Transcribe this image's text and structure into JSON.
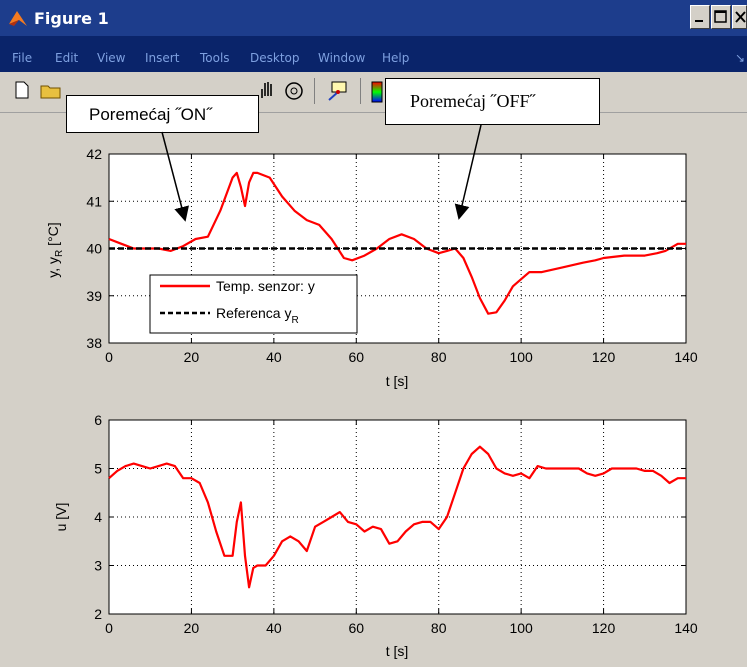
{
  "window": {
    "title": "Figure 1"
  },
  "menu": [
    "File",
    "Edit",
    "View",
    "Insert",
    "Tools",
    "Desktop",
    "Window",
    "Help"
  ],
  "toolbar_icons": [
    "new-file-icon",
    "open-folder-icon",
    "pan-hand-icon",
    "rotate-3d-icon",
    "data-cursor-icon",
    "colorbar-icon"
  ],
  "annotations": {
    "on": "Poremećaj ˝ON˝",
    "off": "Poremećaj ˝OFF˝"
  },
  "colors": {
    "sensor": "#ff0000",
    "reference": "#000000",
    "titlebar": "#1d3d8c",
    "menubar": "#0a246a"
  },
  "chart_data": [
    {
      "type": "line",
      "xlabel": "t [s]",
      "ylabel": "y, y",
      "ylabel_sub": "R",
      "ylabel_unit": " [°C]",
      "xlim": [
        0,
        140
      ],
      "ylim": [
        38,
        42
      ],
      "xticks": [
        0,
        20,
        40,
        60,
        80,
        100,
        120,
        140
      ],
      "yticks": [
        38,
        39,
        40,
        41,
        42
      ],
      "grid": true,
      "legend_position": "bottom-left",
      "series": [
        {
          "name": "Temp. senzor: y",
          "color": "#ff0000",
          "style": "solid",
          "x": [
            0,
            3,
            6,
            9,
            12,
            15,
            18,
            21,
            24,
            27,
            30,
            31,
            32,
            33,
            34,
            35,
            36,
            39,
            42,
            45,
            48,
            51,
            54,
            57,
            59,
            62,
            65,
            68,
            71,
            74,
            77,
            80,
            82,
            84,
            86,
            88,
            90,
            92,
            94,
            96,
            98,
            100,
            102,
            105,
            110,
            115,
            118,
            120,
            125,
            130,
            133,
            135,
            138,
            140
          ],
          "y": [
            40.2,
            40.1,
            40.0,
            40.0,
            40.0,
            39.95,
            40.05,
            40.2,
            40.25,
            40.8,
            41.5,
            41.6,
            41.3,
            40.9,
            41.4,
            41.6,
            41.6,
            41.5,
            41.1,
            40.8,
            40.6,
            40.5,
            40.2,
            39.8,
            39.75,
            39.85,
            40.0,
            40.2,
            40.3,
            40.2,
            40.0,
            39.9,
            39.95,
            40.0,
            39.8,
            39.4,
            38.95,
            38.62,
            38.65,
            38.9,
            39.2,
            39.35,
            39.5,
            39.5,
            39.6,
            39.7,
            39.75,
            39.8,
            39.85,
            39.85,
            39.9,
            39.95,
            40.1,
            40.1
          ]
        },
        {
          "name": "Referenca y",
          "name_sub": "R",
          "color": "#000000",
          "style": "dashed",
          "x": [
            0,
            140
          ],
          "y": [
            40,
            40
          ]
        }
      ]
    },
    {
      "type": "line",
      "xlabel": "t [s]",
      "ylabel": "u [V]",
      "xlim": [
        0,
        140
      ],
      "ylim": [
        2,
        6
      ],
      "xticks": [
        0,
        20,
        40,
        60,
        80,
        100,
        120,
        140
      ],
      "yticks": [
        2,
        3,
        4,
        5,
        6
      ],
      "grid": true,
      "series": [
        {
          "color": "#ff0000",
          "style": "solid",
          "x": [
            0,
            2,
            4,
            6,
            8,
            10,
            12,
            14,
            16,
            18,
            20,
            22,
            24,
            26,
            28,
            30,
            31,
            32,
            33,
            34,
            35,
            36,
            38,
            40,
            42,
            44,
            46,
            48,
            50,
            52,
            54,
            56,
            58,
            60,
            62,
            64,
            66,
            68,
            70,
            72,
            74,
            76,
            78,
            80,
            82,
            84,
            86,
            88,
            90,
            92,
            94,
            96,
            98,
            100,
            102,
            104,
            106,
            108,
            110,
            112,
            114,
            116,
            118,
            120,
            122,
            124,
            126,
            128,
            130,
            132,
            134,
            136,
            138,
            140
          ],
          "y": [
            4.8,
            4.95,
            5.05,
            5.1,
            5.05,
            5.0,
            5.05,
            5.1,
            5.05,
            4.8,
            4.8,
            4.7,
            4.3,
            3.7,
            3.2,
            3.2,
            3.9,
            4.3,
            3.2,
            2.55,
            2.95,
            3.0,
            3.0,
            3.2,
            3.5,
            3.6,
            3.5,
            3.3,
            3.8,
            3.9,
            4.0,
            4.1,
            3.9,
            3.85,
            3.7,
            3.8,
            3.75,
            3.45,
            3.5,
            3.7,
            3.85,
            3.9,
            3.9,
            3.75,
            4.0,
            4.5,
            5.0,
            5.3,
            5.45,
            5.3,
            5.0,
            4.9,
            4.85,
            4.9,
            4.8,
            5.05,
            5.0,
            5.0,
            5.0,
            5.0,
            5.0,
            4.9,
            4.85,
            4.9,
            5.0,
            5.0,
            5.0,
            5.0,
            4.95,
            4.95,
            4.85,
            4.7,
            4.8,
            4.8
          ]
        }
      ]
    }
  ]
}
